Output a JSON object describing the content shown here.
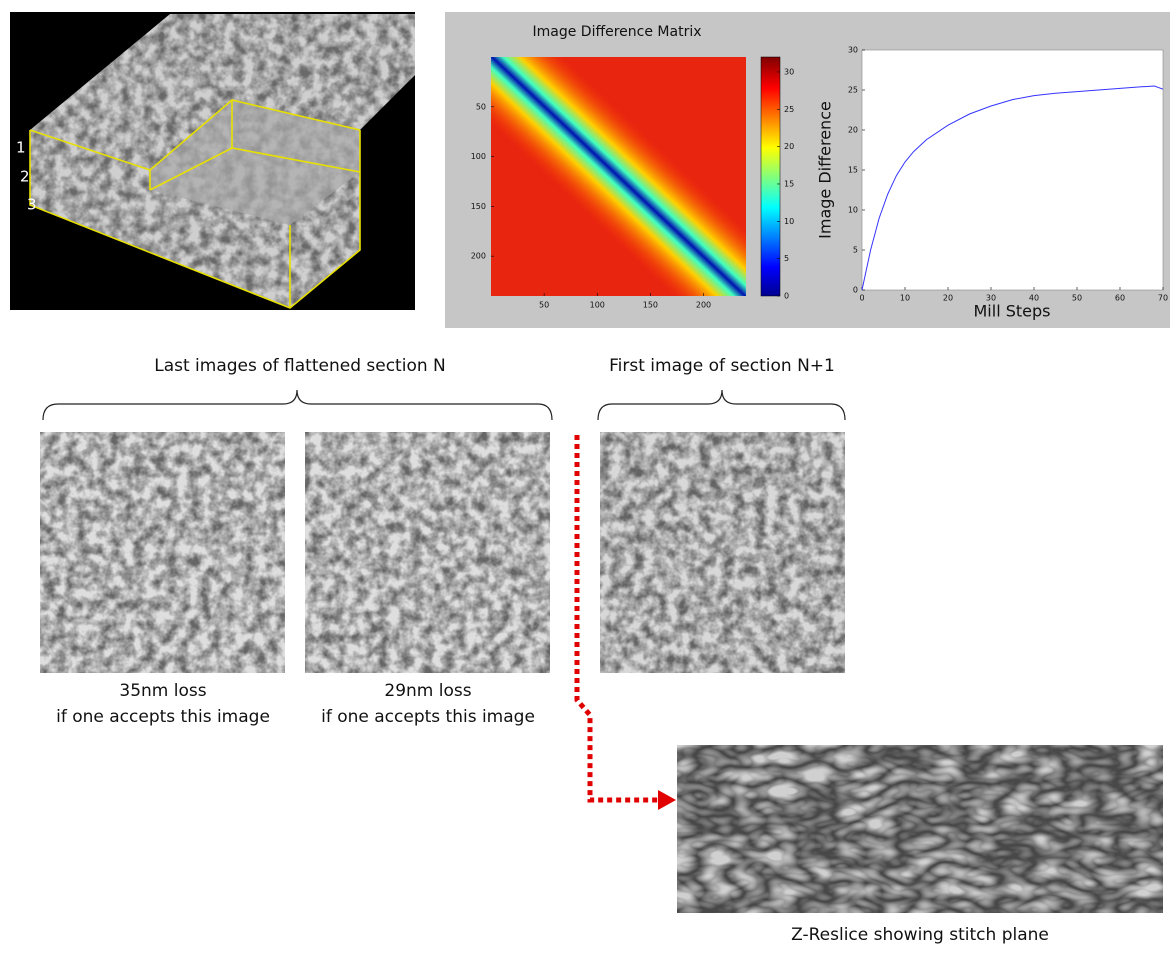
{
  "figure": {
    "block_labels": [
      "1",
      "2",
      "3"
    ],
    "section_n": {
      "heading": "Last images of flattened section N",
      "captions": [
        {
          "line1": "35nm loss",
          "line2": "if one accepts this image"
        },
        {
          "line1": "29nm loss",
          "line2": "if one accepts this image"
        }
      ]
    },
    "section_next": {
      "heading": "First image of section N+1"
    },
    "reslice_caption": "Z-Reslice showing stitch plane"
  },
  "chart_data": [
    {
      "type": "heatmap",
      "title": "Image Difference Matrix",
      "xlim": [
        0,
        240
      ],
      "ylim": [
        0,
        240
      ],
      "xticks": [
        50,
        100,
        150,
        200
      ],
      "yticks": [
        50,
        100,
        150,
        200
      ],
      "colormap": "jet",
      "colorbar": {
        "lim": [
          0,
          32
        ],
        "ticks": [
          0,
          5,
          10,
          15,
          20,
          25,
          30
        ]
      }
    },
    {
      "type": "line",
      "xlabel": "Mill Steps",
      "ylabel": "Image Difference",
      "x": [
        0,
        2,
        4,
        6,
        8,
        10,
        12,
        15,
        20,
        25,
        30,
        35,
        40,
        45,
        50,
        55,
        60,
        65,
        68,
        70
      ],
      "series": [
        {
          "color": "#3333ff",
          "values": [
            0,
            5,
            9,
            12,
            14.3,
            16,
            17.3,
            18.8,
            20.6,
            22,
            23,
            23.8,
            24.3,
            24.6,
            24.8,
            25,
            25.2,
            25.4,
            25.5,
            25.1
          ]
        }
      ],
      "xlim": [
        0,
        70
      ],
      "ylim": [
        0,
        30
      ],
      "xticks": [
        0,
        10,
        20,
        30,
        40,
        50,
        60,
        70
      ],
      "yticks": [
        0,
        5,
        10,
        15,
        20,
        25,
        30
      ]
    }
  ]
}
